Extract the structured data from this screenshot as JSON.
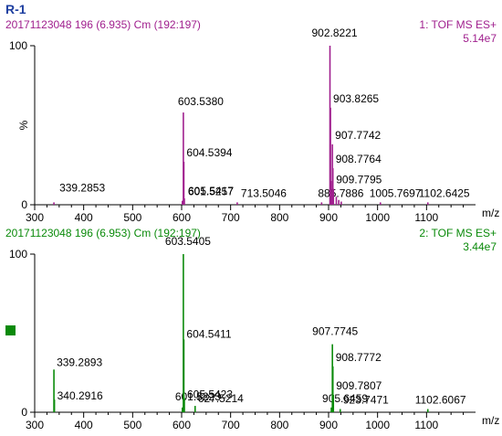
{
  "figure_label": "R-1",
  "chart_data": [
    {
      "type": "bar",
      "header_left": "20171123048 196 (6.935) Cm (192:197)",
      "header_right": "1: TOF MS ES+",
      "intensity": "5.14e7",
      "color": "#a0208e",
      "x_axis": {
        "label": "m/z",
        "range": [
          300,
          1200
        ],
        "ticks": [
          300,
          400,
          500,
          600,
          700,
          800,
          900,
          1000,
          1100
        ]
      },
      "y_axis": {
        "label": "%",
        "range": [
          0,
          100
        ],
        "ticks": [
          0,
          100
        ]
      },
      "peaks": [
        {
          "mz": 339.2853,
          "intensity": 1.5,
          "label": "339.2853"
        },
        {
          "mz": 601.5257,
          "intensity": 2.5,
          "label": "601.5257"
        },
        {
          "mz": 603.538,
          "intensity": 58,
          "label": "603.5380"
        },
        {
          "mz": 604.5394,
          "intensity": 27,
          "label": "604.5394"
        },
        {
          "mz": 605.5417,
          "intensity": 4,
          "label": "605.5417"
        },
        {
          "mz": 713.5046,
          "intensity": 1.5,
          "label": "713.5046"
        },
        {
          "mz": 885.7886,
          "intensity": 1.5,
          "label": "885.7886"
        },
        {
          "mz": 902.8221,
          "intensity": 100,
          "label": "902.8221"
        },
        {
          "mz": 903.8265,
          "intensity": 61,
          "label": "903.8265"
        },
        {
          "mz": 904.83,
          "intensity": 15,
          "label": ""
        },
        {
          "mz": 905.83,
          "intensity": 8,
          "label": ""
        },
        {
          "mz": 907.7742,
          "intensity": 38,
          "label": "907.7742"
        },
        {
          "mz": 908.7764,
          "intensity": 23,
          "label": "908.7764"
        },
        {
          "mz": 909.7795,
          "intensity": 10,
          "label": "909.7795"
        },
        {
          "mz": 915.8,
          "intensity": 5,
          "label": ""
        },
        {
          "mz": 920.8,
          "intensity": 3,
          "label": ""
        },
        {
          "mz": 925.8,
          "intensity": 2,
          "label": ""
        },
        {
          "mz": 1005.7697,
          "intensity": 1.5,
          "label": "1005.7697"
        },
        {
          "mz": 1102.6425,
          "intensity": 1.5,
          "label": "1102.6425"
        }
      ]
    },
    {
      "type": "bar",
      "header_left": "20171123048 196 (6.953) Cm (192:197)",
      "header_right": "2: TOF MS ES+",
      "intensity": "3.44e7",
      "color": "#0a8a0a",
      "x_axis": {
        "label": "m/z",
        "range": [
          300,
          1200
        ],
        "ticks": [
          300,
          400,
          500,
          600,
          700,
          800,
          900,
          1000,
          1100
        ]
      },
      "y_axis": {
        "label": "",
        "range": [
          0,
          100
        ],
        "ticks": [
          0,
          100
        ]
      },
      "peaks": [
        {
          "mz": 339.2893,
          "intensity": 27,
          "label": "339.2893"
        },
        {
          "mz": 340.2916,
          "intensity": 8,
          "label": "340.2916"
        },
        {
          "mz": 601.5223,
          "intensity": 3,
          "label": "601.5223"
        },
        {
          "mz": 603.5405,
          "intensity": 100,
          "label": "603.5405"
        },
        {
          "mz": 604.5411,
          "intensity": 46,
          "label": "604.5411"
        },
        {
          "mz": 605.5423,
          "intensity": 9,
          "label": "605.5423"
        },
        {
          "mz": 627.5214,
          "intensity": 4,
          "label": "627.5214"
        },
        {
          "mz": 905.6459,
          "intensity": 3,
          "label": "905.6459"
        },
        {
          "mz": 907.7745,
          "intensity": 43,
          "label": "907.7745"
        },
        {
          "mz": 908.7772,
          "intensity": 29,
          "label": "908.7772"
        },
        {
          "mz": 909.7807,
          "intensity": 11,
          "label": "909.7807"
        },
        {
          "mz": 923.7471,
          "intensity": 2,
          "label": "923.7471"
        },
        {
          "mz": 1102.6067,
          "intensity": 2,
          "label": "1102.6067"
        }
      ]
    }
  ]
}
